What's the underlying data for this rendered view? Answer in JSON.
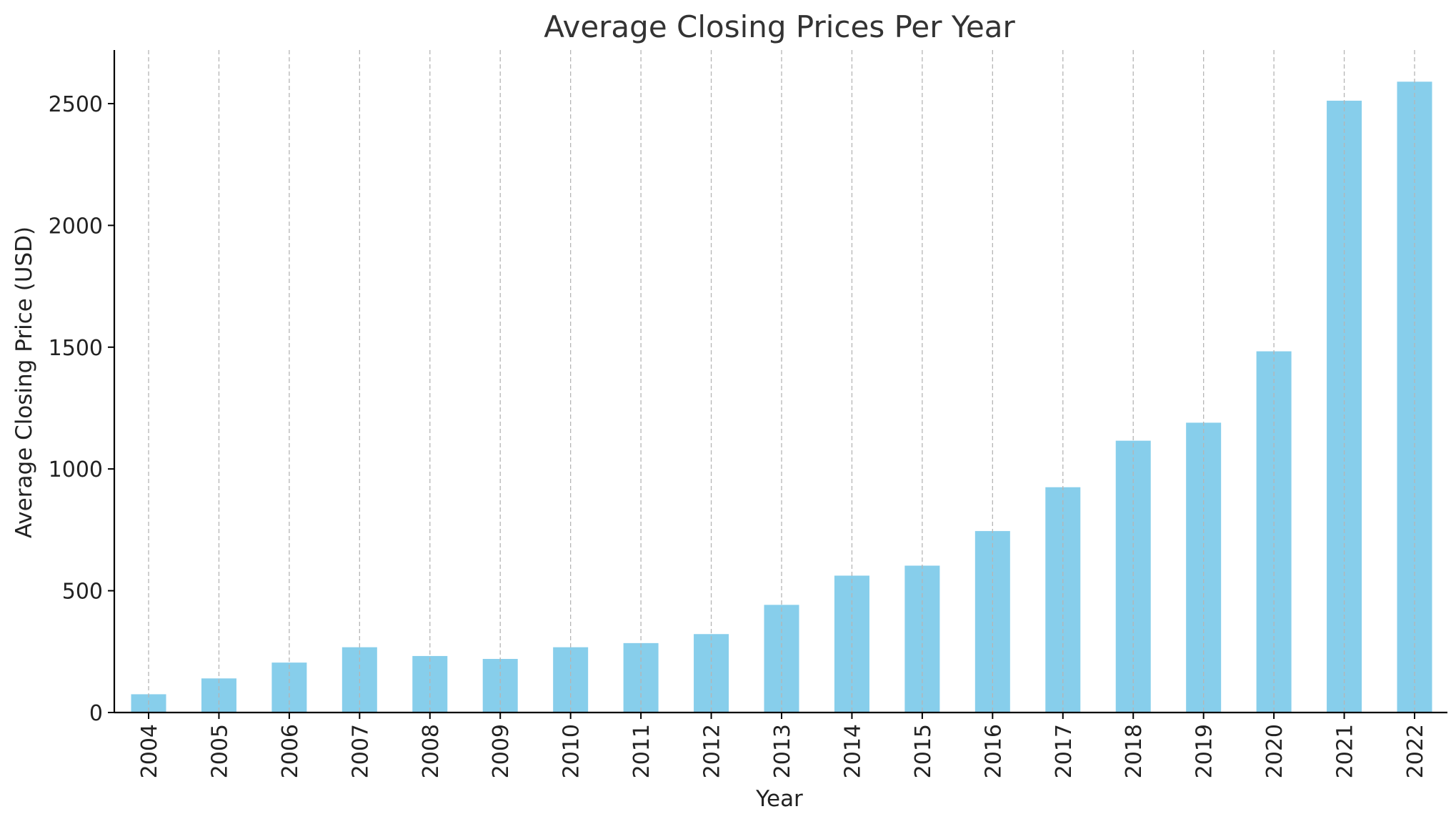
{
  "colors": {
    "bar": "#87ceeb",
    "grid": "#b5b5b5",
    "text": "#222222"
  },
  "chart_data": {
    "type": "bar",
    "title": "Average Closing Prices Per Year",
    "xlabel": "Year",
    "ylabel": "Average Closing Price (USD)",
    "categories": [
      "2004",
      "2005",
      "2006",
      "2007",
      "2008",
      "2009",
      "2010",
      "2011",
      "2012",
      "2013",
      "2014",
      "2015",
      "2016",
      "2017",
      "2018",
      "2019",
      "2020",
      "2021",
      "2022"
    ],
    "values": [
      75,
      140,
      205,
      268,
      232,
      220,
      268,
      285,
      322,
      442,
      562,
      603,
      745,
      925,
      1116,
      1190,
      1483,
      2512,
      2590
    ],
    "yticks": [
      0,
      500,
      1000,
      1500,
      2000,
      2500
    ],
    "ylim": [
      0,
      2720
    ],
    "grid": "x-dashed",
    "legend": "none"
  }
}
